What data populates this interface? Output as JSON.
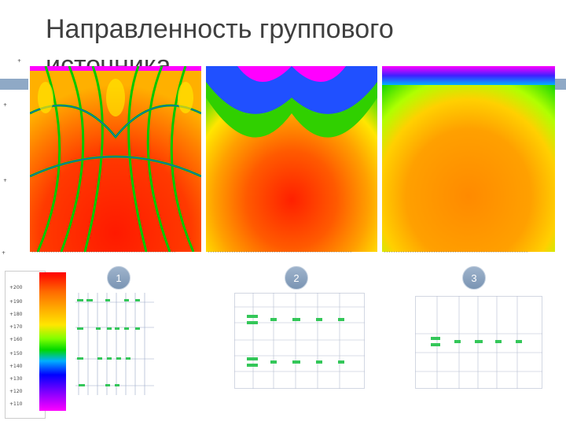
{
  "title": "Направленность группового источника",
  "badges": [
    "1",
    "2",
    "3"
  ],
  "scale_values": [
    "+200",
    "+190",
    "+180",
    "+170",
    "+160",
    "+150",
    "+140",
    "+130",
    "+120",
    "+110"
  ],
  "colors": {
    "deco": "#8fa9c6",
    "title": "#3f3f3f",
    "badge": "#8aa1be"
  }
}
